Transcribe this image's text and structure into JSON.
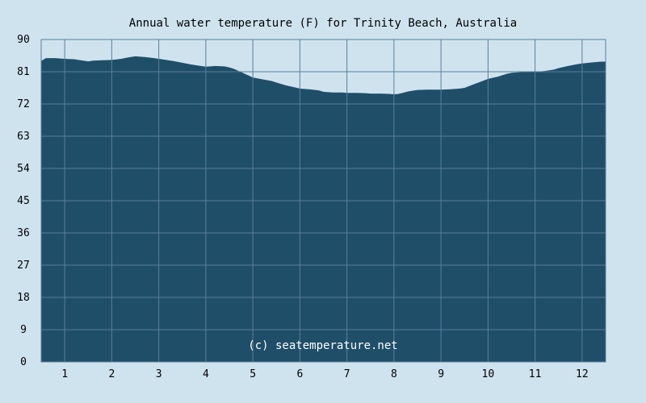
{
  "chart_data": {
    "type": "area",
    "title": "Annual water temperature (F) for Trinity Beach, Australia",
    "xlabel": "",
    "ylabel": "",
    "categories": [
      "1",
      "2",
      "3",
      "4",
      "5",
      "6",
      "7",
      "8",
      "9",
      "10",
      "11",
      "12"
    ],
    "x_range": [
      0.5,
      12.5
    ],
    "ylim": [
      0,
      90
    ],
    "yticks": [
      0,
      9,
      18,
      27,
      36,
      45,
      54,
      63,
      72,
      81,
      90
    ],
    "grid": true,
    "legend": "none",
    "series": [
      {
        "x": [
          0.5,
          0.6,
          0.8,
          1.0,
          1.2,
          1.4,
          1.5,
          1.6,
          1.8,
          2.0,
          2.2,
          2.35,
          2.5,
          2.7,
          2.9,
          3.0,
          3.1,
          3.3,
          3.5,
          3.7,
          3.9,
          4.0,
          4.2,
          4.4,
          4.5,
          4.6,
          4.8,
          5.0,
          5.2,
          5.4,
          5.5,
          5.7,
          5.9,
          6.0,
          6.2,
          6.4,
          6.5,
          6.7,
          6.9,
          7.0,
          7.2,
          7.4,
          7.5,
          7.7,
          7.9,
          8.0,
          8.1,
          8.3,
          8.5,
          8.7,
          8.9,
          9.0,
          9.2,
          9.4,
          9.5,
          9.7,
          9.9,
          10.0,
          10.2,
          10.4,
          10.5,
          10.7,
          10.9,
          11.0,
          11.2,
          11.4,
          11.5,
          11.7,
          11.9,
          12.0,
          12.2,
          12.4,
          12.5
        ],
        "y": [
          84.0,
          84.8,
          84.8,
          84.6,
          84.5,
          84.1,
          83.9,
          84.1,
          84.2,
          84.3,
          84.6,
          85.0,
          85.3,
          85.1,
          84.8,
          84.6,
          84.4,
          84.0,
          83.5,
          83.0,
          82.6,
          82.4,
          82.6,
          82.5,
          82.2,
          81.8,
          80.6,
          79.4,
          78.9,
          78.4,
          78.0,
          77.2,
          76.6,
          76.3,
          76.1,
          75.8,
          75.4,
          75.2,
          75.2,
          75.1,
          75.1,
          75.0,
          74.9,
          74.9,
          74.8,
          74.7,
          74.8,
          75.5,
          75.9,
          76.0,
          76.0,
          76.0,
          76.1,
          76.3,
          76.5,
          77.5,
          78.5,
          79.0,
          79.6,
          80.4,
          80.7,
          80.9,
          81.0,
          81.0,
          81.2,
          81.6,
          82.0,
          82.6,
          83.1,
          83.3,
          83.6,
          83.8,
          83.8
        ]
      }
    ],
    "annotation": "(c) seatemperature.net",
    "colors": {
      "background": "#cfe3ef",
      "area": "#1f4e69",
      "grid": "#5a7f98"
    }
  }
}
